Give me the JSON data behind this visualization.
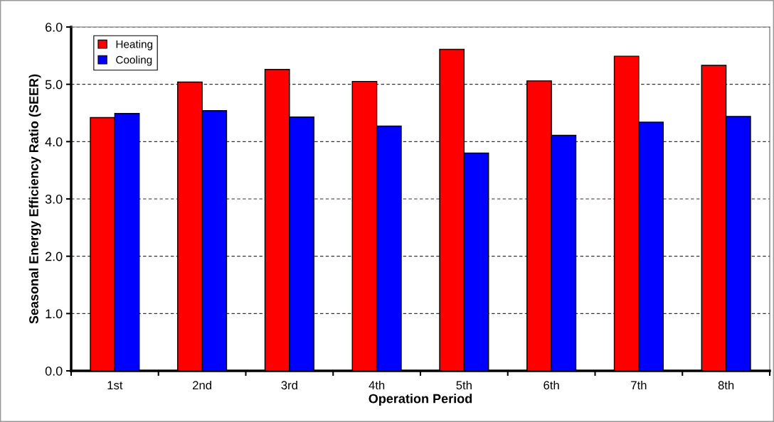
{
  "chart_data": {
    "type": "bar",
    "xlabel": "Operation Period",
    "ylabel": "Seasonal Energy Efficiency Ratio (SEER)",
    "categories": [
      "1st",
      "2nd",
      "3rd",
      "4th",
      "5th",
      "6th",
      "7th",
      "8th"
    ],
    "series": [
      {
        "name": "Heating",
        "color": "#ff0000",
        "values": [
          4.42,
          5.04,
          5.26,
          5.05,
          5.61,
          5.06,
          5.49,
          5.33
        ]
      },
      {
        "name": "Cooling",
        "color": "#0000ff",
        "values": [
          4.49,
          4.54,
          4.43,
          4.27,
          3.8,
          4.11,
          4.34,
          4.44
        ]
      }
    ],
    "ylim": [
      0,
      6
    ],
    "yticks": [
      {
        "value": 0,
        "label": "0.0"
      },
      {
        "value": 1,
        "label": "1.0"
      },
      {
        "value": 2,
        "label": "2.0"
      },
      {
        "value": 3,
        "label": "3.0"
      },
      {
        "value": 4,
        "label": "4.0"
      },
      {
        "value": 5,
        "label": "5.0"
      },
      {
        "value": 6,
        "label": "6.0"
      }
    ],
    "grid": "y",
    "legend": "top left"
  }
}
